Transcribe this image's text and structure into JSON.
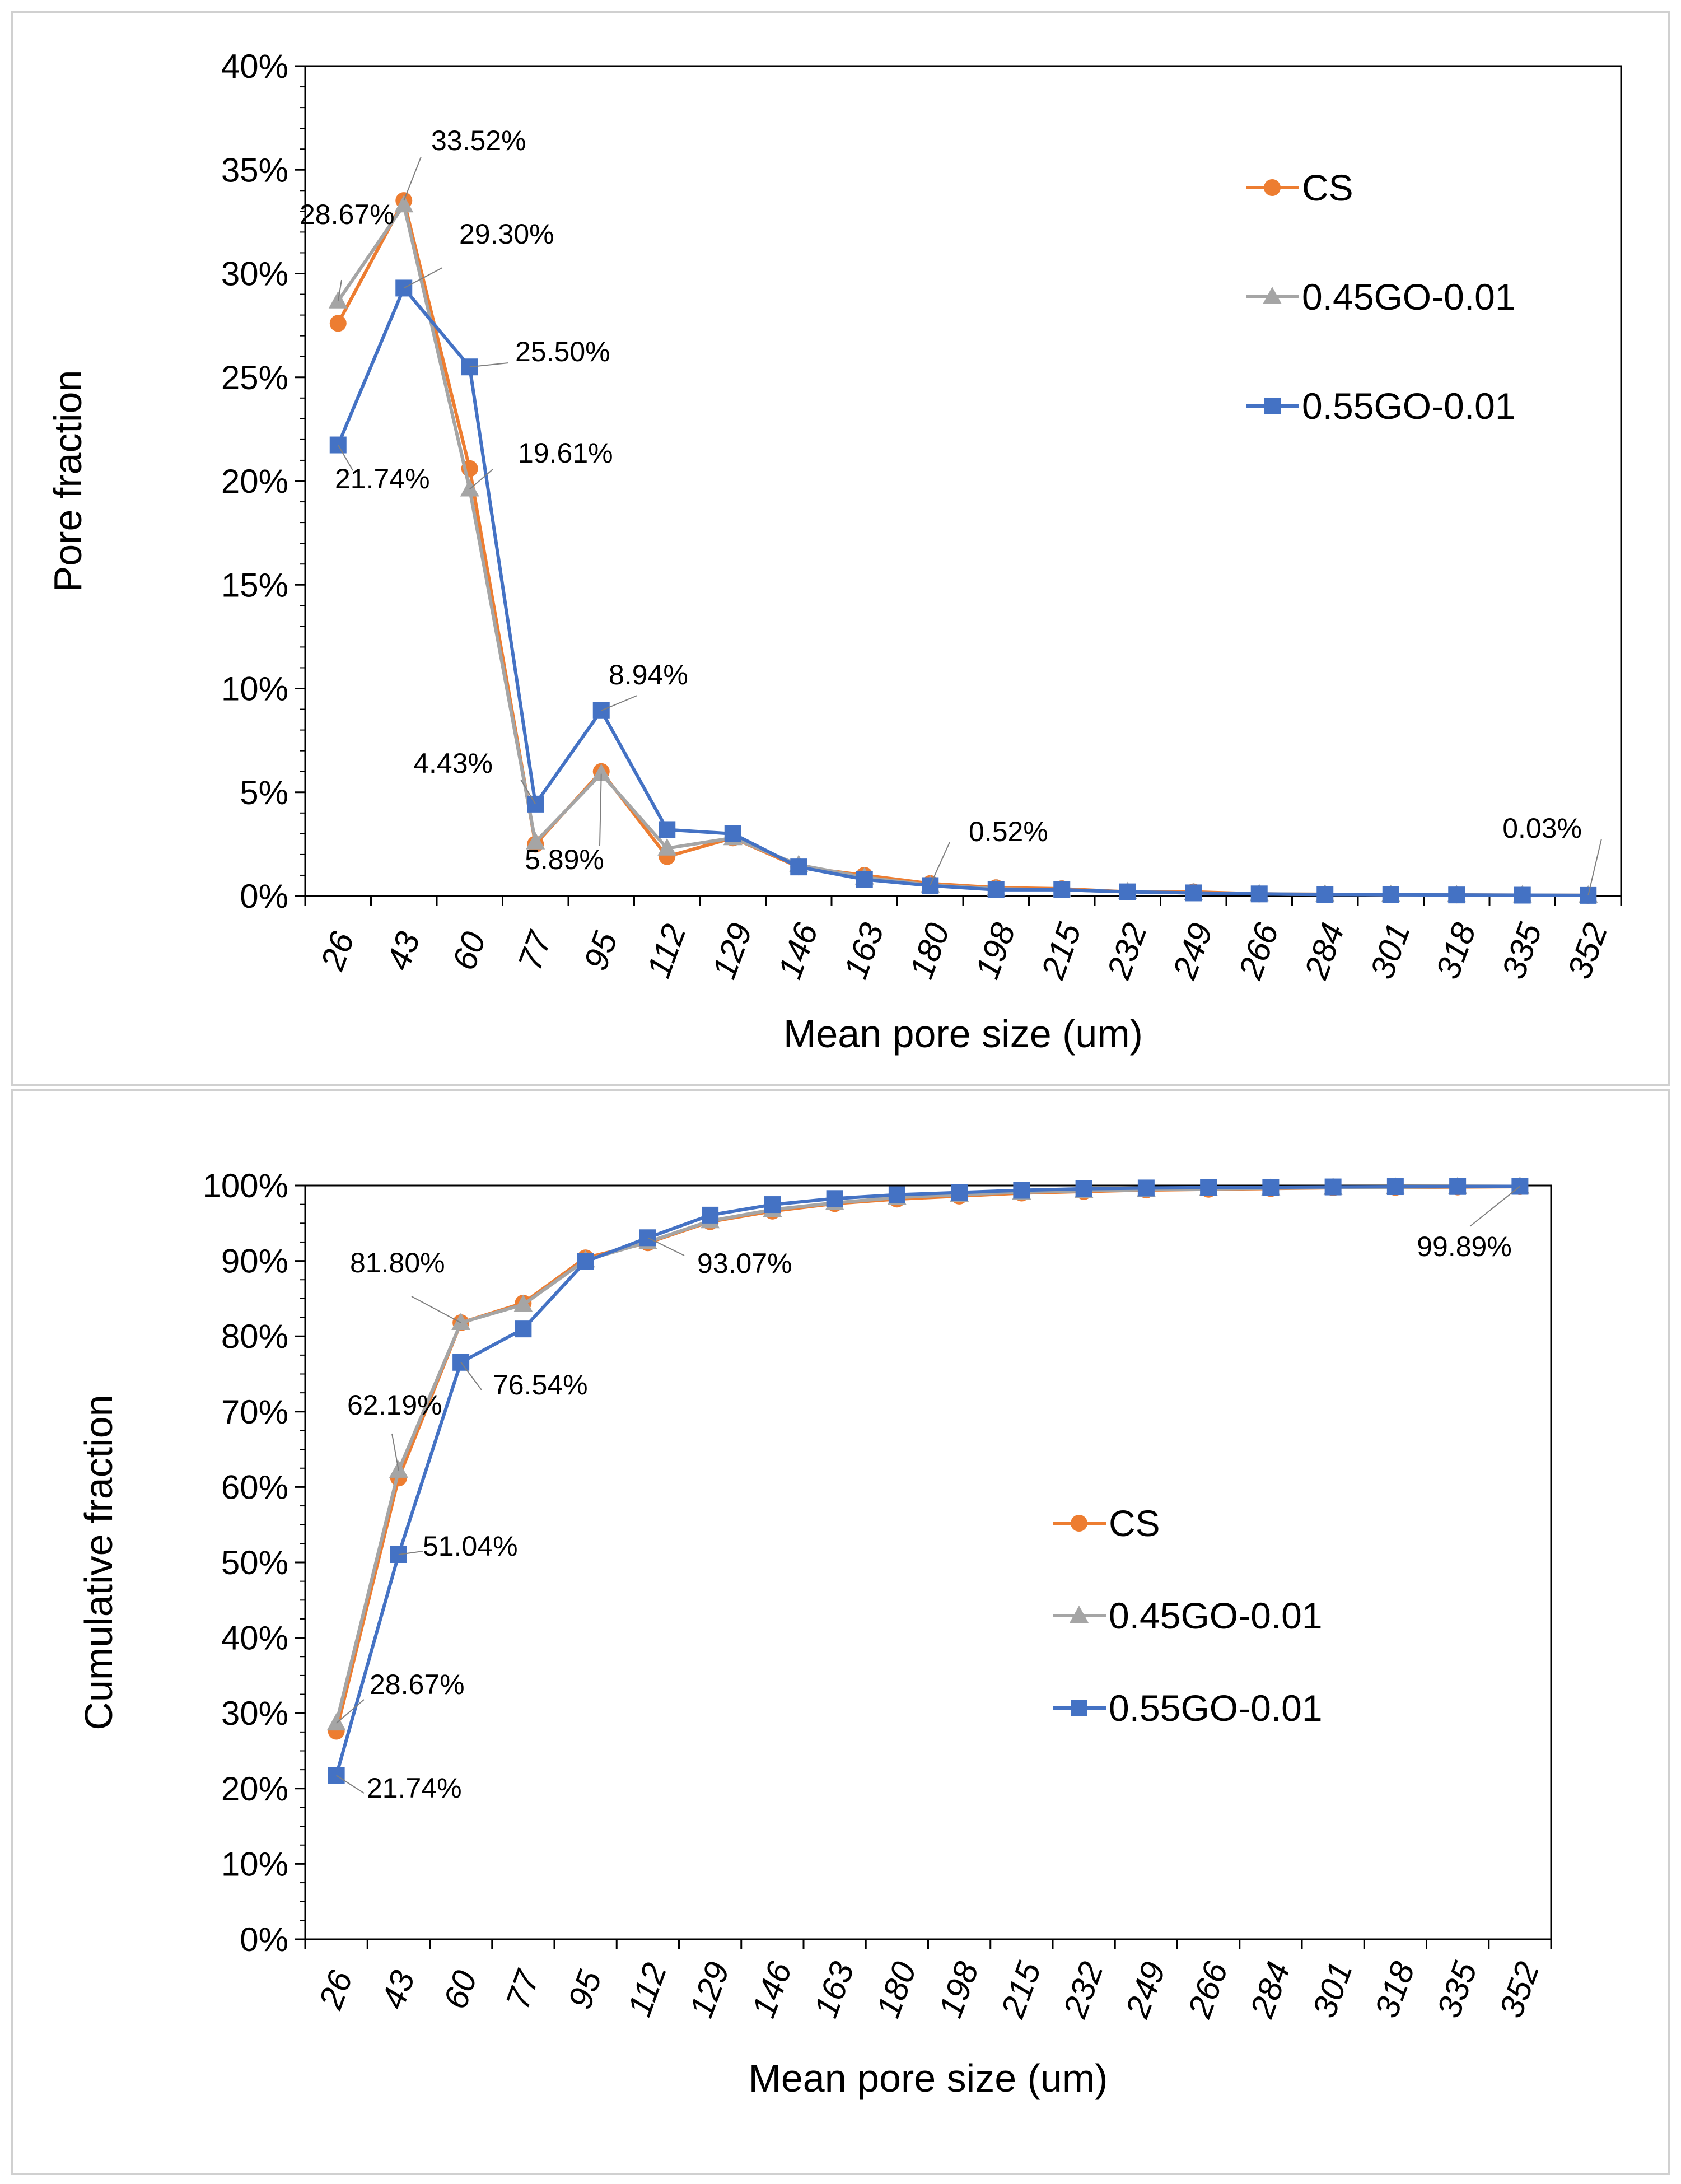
{
  "chart_data": [
    {
      "type": "line",
      "title": "",
      "xlabel": "Mean pore size  (um)",
      "ylabel": "Pore fraction",
      "categories": [
        "26",
        "43",
        "60",
        "77",
        "95",
        "112",
        "129",
        "146",
        "163",
        "180",
        "198",
        "215",
        "232",
        "249",
        "266",
        "284",
        "301",
        "318",
        "335",
        "352"
      ],
      "ylim": [
        0,
        40
      ],
      "y_ticks": [
        "0%",
        "5%",
        "10%",
        "15%",
        "20%",
        "25%",
        "30%",
        "35%",
        "40%"
      ],
      "legend_position": "top-right",
      "series": [
        {
          "name": "CS",
          "color": "#ED7D31",
          "marker": "circle",
          "values": [
            27.6,
            33.52,
            20.6,
            2.5,
            6.0,
            1.9,
            2.8,
            1.4,
            1.0,
            0.6,
            0.4,
            0.35,
            0.2,
            0.2,
            0.1,
            0.08,
            0.06,
            0.05,
            0.04,
            0.03
          ]
        },
        {
          "name": "0.45GO-0.01",
          "color": "#A5A5A5",
          "marker": "triangle",
          "values": [
            28.67,
            33.3,
            19.61,
            2.6,
            5.89,
            2.3,
            2.8,
            1.5,
            0.9,
            0.52,
            0.35,
            0.3,
            0.2,
            0.15,
            0.1,
            0.08,
            0.06,
            0.05,
            0.04,
            0.03
          ]
        },
        {
          "name": "0.55GO-0.01",
          "color": "#4472C4",
          "marker": "square",
          "values": [
            21.74,
            29.3,
            25.5,
            4.43,
            8.94,
            3.2,
            3.0,
            1.4,
            0.8,
            0.5,
            0.3,
            0.3,
            0.2,
            0.15,
            0.1,
            0.07,
            0.06,
            0.05,
            0.04,
            0.03
          ]
        }
      ],
      "annotations": [
        {
          "text": "33.52%",
          "series": 0,
          "index": 1
        },
        {
          "text": "28.67%",
          "series": 1,
          "index": 0
        },
        {
          "text": "29.30%",
          "series": 2,
          "index": 1
        },
        {
          "text": "25.50%",
          "series": 2,
          "index": 2
        },
        {
          "text": "21.74%",
          "series": 2,
          "index": 0
        },
        {
          "text": "19.61%",
          "series": 1,
          "index": 2
        },
        {
          "text": "8.94%",
          "series": 2,
          "index": 4
        },
        {
          "text": "4.43%",
          "series": 2,
          "index": 3
        },
        {
          "text": "5.89%",
          "series": 1,
          "index": 4
        },
        {
          "text": "0.52%",
          "series": 1,
          "index": 9
        },
        {
          "text": "0.03%",
          "series": 1,
          "index": 19
        }
      ]
    },
    {
      "type": "line",
      "title": "",
      "xlabel": "Mean pore size  (um)",
      "ylabel": "Cumulative fraction",
      "categories": [
        "26",
        "43",
        "60",
        "77",
        "95",
        "112",
        "129",
        "146",
        "163",
        "180",
        "198",
        "215",
        "232",
        "249",
        "266",
        "284",
        "301",
        "318",
        "335",
        "352"
      ],
      "ylim": [
        0,
        100
      ],
      "y_ticks": [
        "0%",
        "10%",
        "20%",
        "30%",
        "40%",
        "50%",
        "60%",
        "70%",
        "80%",
        "90%",
        "100%"
      ],
      "legend_position": "center-right",
      "series": [
        {
          "name": "CS",
          "color": "#ED7D31",
          "marker": "circle",
          "values": [
            27.6,
            61.2,
            81.8,
            84.4,
            90.4,
            92.4,
            95.2,
            96.6,
            97.6,
            98.2,
            98.6,
            99.0,
            99.2,
            99.4,
            99.5,
            99.6,
            99.7,
            99.75,
            99.8,
            99.85
          ]
        },
        {
          "name": "0.45GO-0.01",
          "color": "#A5A5A5",
          "marker": "triangle",
          "values": [
            28.67,
            62.19,
            81.8,
            84.2,
            90.1,
            92.5,
            95.3,
            96.8,
            97.7,
            98.4,
            98.8,
            99.1,
            99.3,
            99.45,
            99.55,
            99.65,
            99.72,
            99.78,
            99.83,
            99.87
          ]
        },
        {
          "name": "0.55GO-0.01",
          "color": "#4472C4",
          "marker": "square",
          "values": [
            21.74,
            51.04,
            76.54,
            80.97,
            89.91,
            93.07,
            96.07,
            97.47,
            98.27,
            98.77,
            99.07,
            99.37,
            99.57,
            99.67,
            99.72,
            99.77,
            99.81,
            99.85,
            99.87,
            99.89
          ]
        }
      ],
      "annotations": [
        {
          "text": "81.80%",
          "series": 1,
          "index": 2
        },
        {
          "text": "62.19%",
          "series": 1,
          "index": 1
        },
        {
          "text": "76.54%",
          "series": 2,
          "index": 2
        },
        {
          "text": "51.04%",
          "series": 2,
          "index": 1
        },
        {
          "text": "28.67%",
          "series": 1,
          "index": 0
        },
        {
          "text": "21.74%",
          "series": 2,
          "index": 0
        },
        {
          "text": "93.07%",
          "series": 2,
          "index": 5
        },
        {
          "text": "99.89%",
          "series": 2,
          "index": 19
        }
      ]
    }
  ]
}
